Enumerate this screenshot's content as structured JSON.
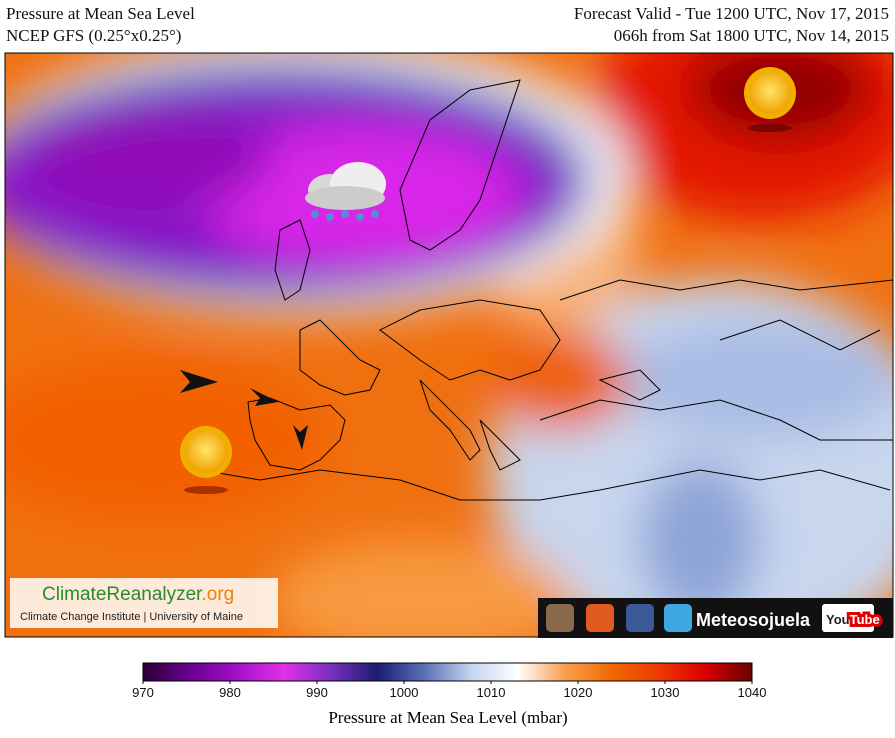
{
  "header": {
    "title_left": "Pressure at Mean Sea Level",
    "subtitle_left": "NCEP GFS (0.25°x0.25°)",
    "title_right": "Forecast Valid - Tue 1200 UTC, Nov 17, 2015",
    "subtitle_right": "066h from Sat 1800 UTC, Nov 14, 2015"
  },
  "watermark": {
    "site_a": "ClimateReanalyzer",
    "site_b": ".org",
    "affiliation": "Climate Change Institute | University of Maine"
  },
  "social": {
    "brand": "Meteosojuela",
    "youtube_a": "You",
    "youtube_b": "Tube"
  },
  "colorbar": {
    "label": "Pressure at Mean Sea Level (mbar)",
    "lim": [
      970,
      1040
    ],
    "ticks": [
      970,
      980,
      990,
      1000,
      1010,
      1020,
      1030,
      1040
    ],
    "colors": [
      "#2a0035",
      "#6a0090",
      "#a010c8",
      "#e030e8",
      "#7a30c0",
      "#1c1c70",
      "#5a70b8",
      "#c4d4ee",
      "#ffffff",
      "#f8a050",
      "#f06a00",
      "#ee3a00",
      "#d80000",
      "#6a0000"
    ]
  }
}
